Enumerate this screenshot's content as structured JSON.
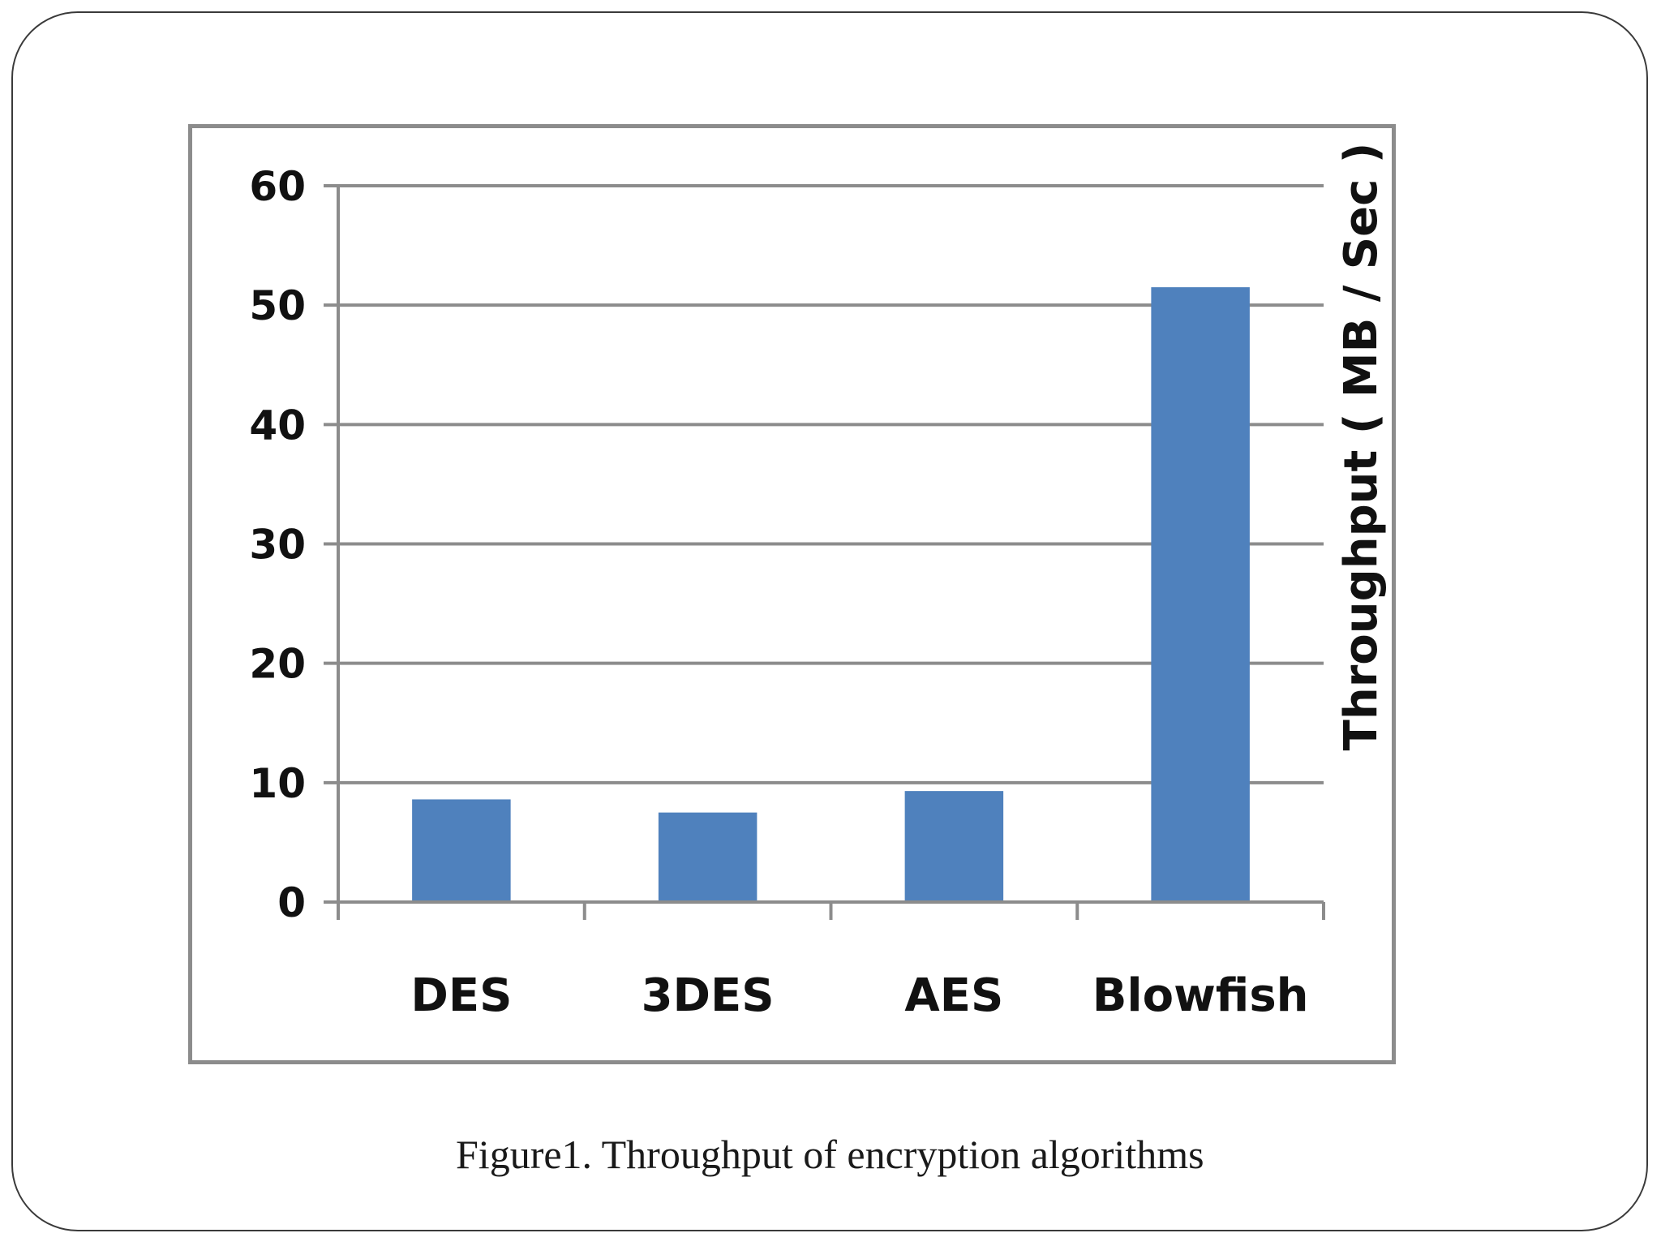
{
  "chart_data": {
    "type": "bar",
    "categories": [
      "DES",
      "3DES",
      "AES",
      "Blowfish"
    ],
    "values": [
      8.6,
      7.5,
      9.3,
      51.5
    ],
    "title": "",
    "xlabel": "",
    "ylabel": "Throughput ( MB / Sec )",
    "ylim": [
      0,
      60
    ],
    "yticks": [
      0,
      10,
      20,
      30,
      40,
      50,
      60
    ],
    "grid": true,
    "legend": "none",
    "bar_color": "#4f81bd"
  },
  "caption": "Figure1. Throughput of encryption algorithms"
}
